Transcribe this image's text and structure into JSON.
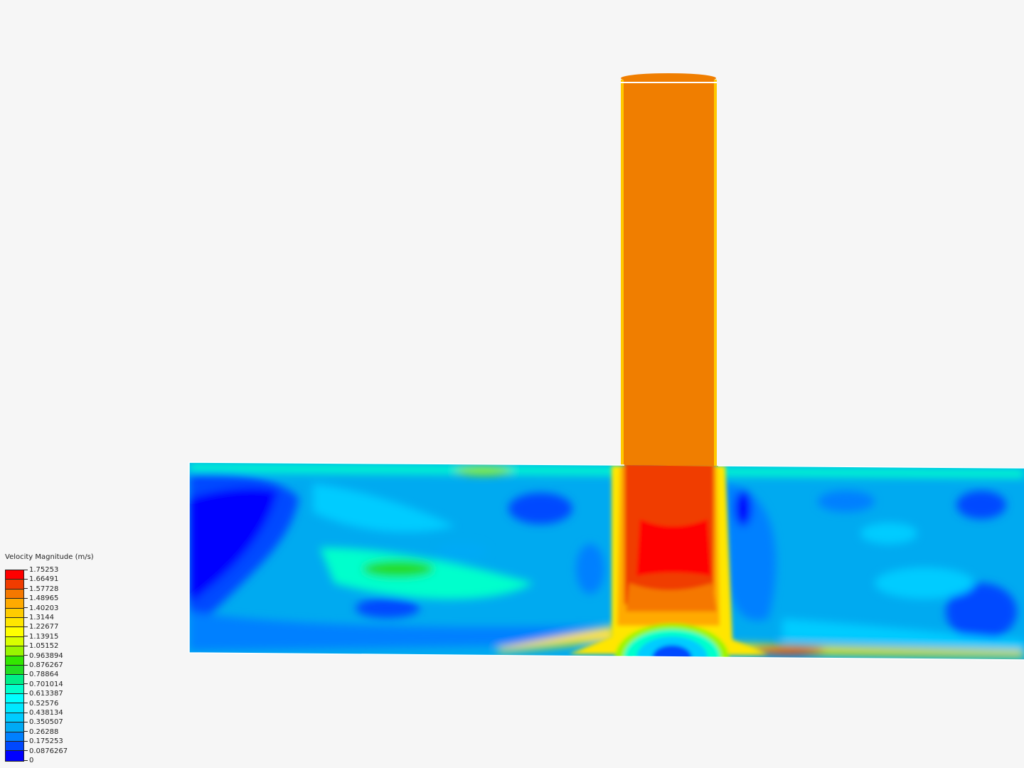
{
  "legend": {
    "title": "Velocity Magnitude (m/s)",
    "ticks": [
      "1.75253",
      "1.66491",
      "1.57728",
      "1.48965",
      "1.40203",
      "1.3144",
      "1.22677",
      "1.13915",
      "1.05152",
      "0.963894",
      "0.876267",
      "0.78864",
      "0.701014",
      "0.613387",
      "0.52576",
      "0.438134",
      "0.350507",
      "0.26288",
      "0.175253",
      "0.0876267",
      "0"
    ],
    "colors": [
      "#ff0000",
      "#f03c00",
      "#f57800",
      "#ffaa00",
      "#ffcc00",
      "#ffe600",
      "#ffff00",
      "#d9ff00",
      "#99f500",
      "#33e600",
      "#22dd22",
      "#00ee88",
      "#00ffcc",
      "#00ffff",
      "#00e8ff",
      "#00ccff",
      "#00aaf5",
      "#0080ff",
      "#0048ff",
      "#0000ff"
    ],
    "range": [
      0,
      1.75253
    ]
  },
  "field": {
    "quantity": "Velocity Magnitude",
    "inlet_color": "#f07e00",
    "background": "#f6f6f6"
  }
}
